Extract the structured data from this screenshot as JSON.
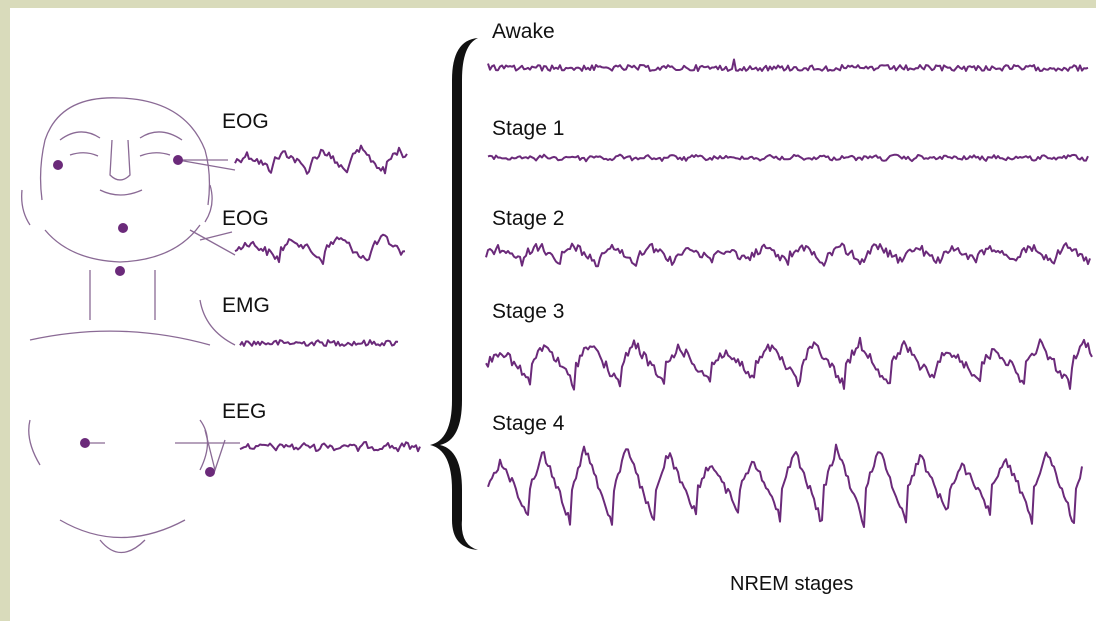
{
  "electrodes": [
    {
      "label": "EOG"
    },
    {
      "label": "EOG"
    },
    {
      "label": "EMG"
    },
    {
      "label": "EEG"
    }
  ],
  "stages": [
    {
      "label": "Awake"
    },
    {
      "label": "Stage 1"
    },
    {
      "label": "Stage 2"
    },
    {
      "label": "Stage 3"
    },
    {
      "label": "Stage 4"
    }
  ],
  "caption": "NREM stages"
}
